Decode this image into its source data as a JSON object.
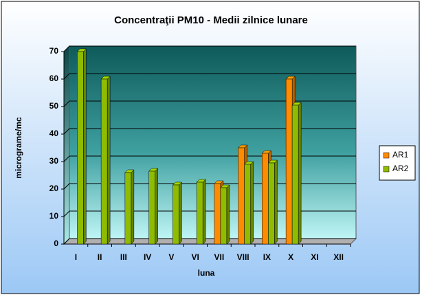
{
  "chart_data": {
    "type": "bar",
    "title": "Concentraţii PM10 - Medii zilnice lunare",
    "x_label": "luna",
    "y_label": "micrograme/mc",
    "categories": [
      "I",
      "II",
      "III",
      "IV",
      "V",
      "VI",
      "VII",
      "VIII",
      "IX",
      "X",
      "XI",
      "XII"
    ],
    "series": [
      {
        "name": "AR1",
        "color": "#ff8c00",
        "values": [
          null,
          null,
          null,
          null,
          null,
          null,
          22,
          35,
          33,
          60,
          null,
          null
        ]
      },
      {
        "name": "AR2",
        "color": "#8fbc00",
        "values": [
          70,
          60,
          26,
          26.5,
          21.5,
          22.5,
          20.5,
          29,
          29.5,
          50.5,
          null,
          null
        ]
      }
    ],
    "ylim": [
      0,
      70
    ],
    "yticks": [
      0,
      10,
      20,
      30,
      40,
      50,
      60,
      70
    ],
    "grid": true,
    "legend": "right"
  }
}
